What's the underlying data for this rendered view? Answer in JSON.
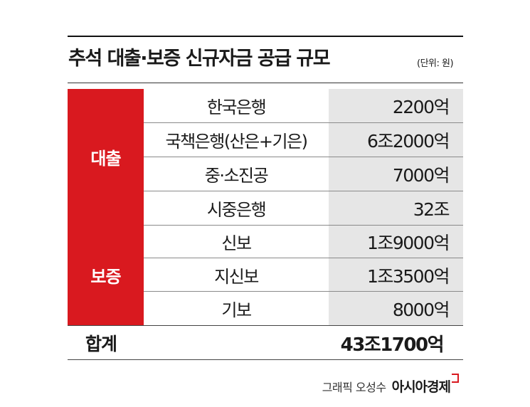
{
  "title": "추석 대출·보증 신규자금 공급 규모",
  "unit": "(단위: 원)",
  "groups": [
    {
      "label": "대출",
      "rows": [
        {
          "name": "한국은행",
          "value": "2200억"
        },
        {
          "name": "국책은행(산은+기은)",
          "value": "6조2000억"
        },
        {
          "name": "중·소진공",
          "value": "7000억"
        },
        {
          "name": "시중은행",
          "value": "32조"
        }
      ]
    },
    {
      "label": "보증",
      "rows": [
        {
          "name": "신보",
          "value": "1조9000억"
        },
        {
          "name": "지신보",
          "value": "1조3500억"
        },
        {
          "name": "기보",
          "value": "8000억"
        }
      ]
    }
  ],
  "total": {
    "label": "합계",
    "value": "43조1700억"
  },
  "credit": {
    "graphic": "그래픽 오성수",
    "brand": "아시아경제"
  },
  "colors": {
    "accent": "#d9191f",
    "value_bg": "#e6e6e6"
  }
}
